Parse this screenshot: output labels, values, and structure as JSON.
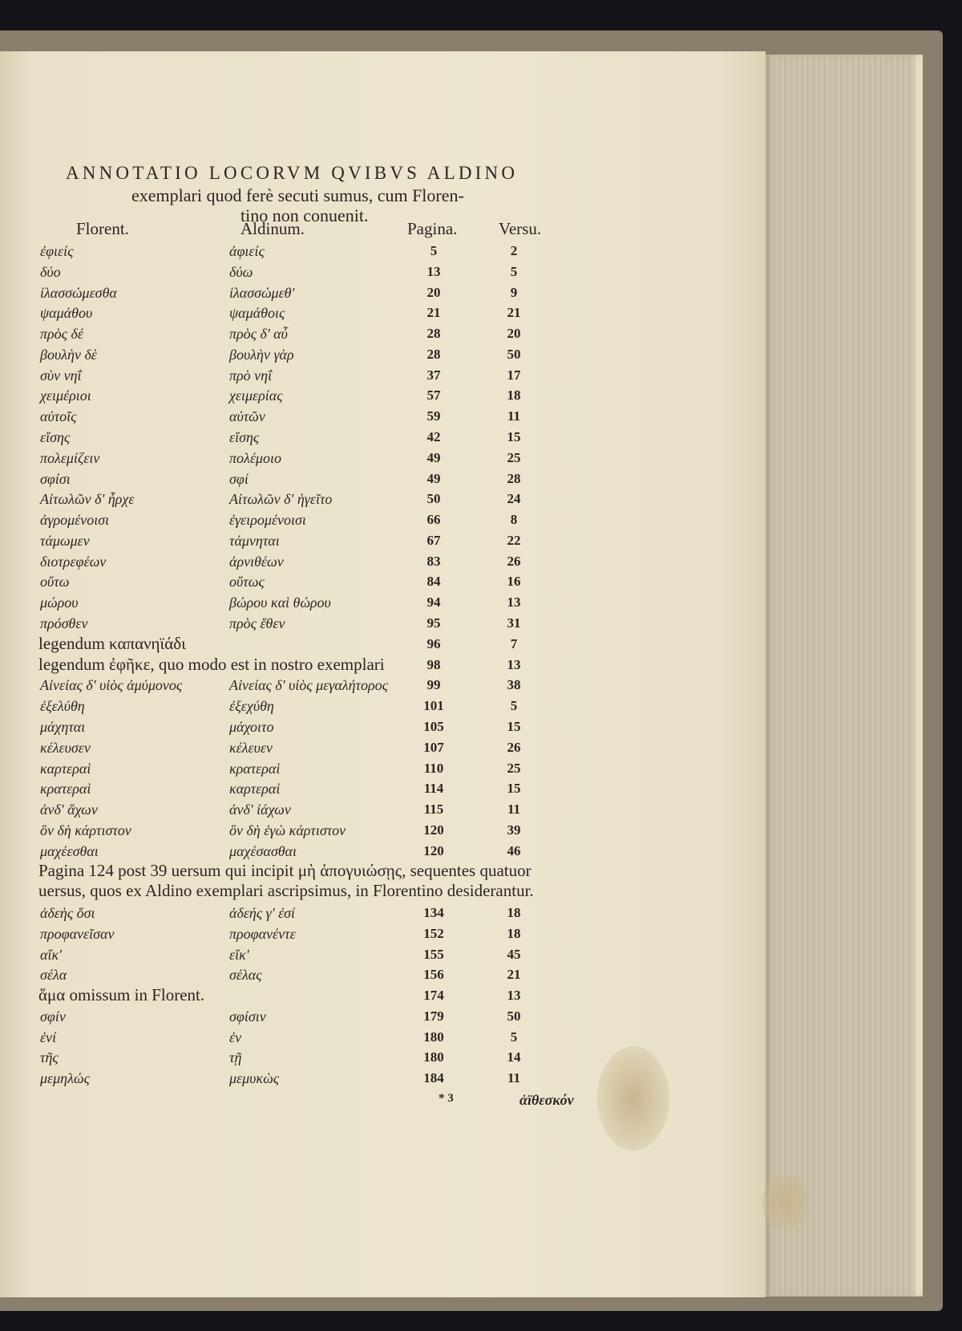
{
  "title": {
    "line1": "ANNOTATIO LOCORVM QVIBVS ALDINO",
    "line2": "exemplari quod ferè secuti sumus, cum Floren-",
    "line3": "tino non conuenit."
  },
  "headers": {
    "florent": "Florent.",
    "aldinum": "Aldinum.",
    "pagina": "Pagina.",
    "versu": "Versu."
  },
  "rows": [
    {
      "florent": "ἐφιείς",
      "aldinum": "ἀφιείς",
      "pagina": "5",
      "versu": "2"
    },
    {
      "florent": "δύο",
      "aldinum": "δύω",
      "pagina": "13",
      "versu": "5"
    },
    {
      "florent": "ἱλασσώμεσθα",
      "aldinum": "ἱλασσώμεθ'",
      "pagina": "20",
      "versu": "9"
    },
    {
      "florent": "ψαμάθου",
      "aldinum": "ψαμάθοις",
      "pagina": "21",
      "versu": "21"
    },
    {
      "florent": "πρὸς δέ",
      "aldinum": "πρὸς δ' αὖ",
      "pagina": "28",
      "versu": "20"
    },
    {
      "florent": "βουλὴν δὲ",
      "aldinum": "βουλὴν γὰρ",
      "pagina": "28",
      "versu": "50"
    },
    {
      "florent": "σὺν νηΐ",
      "aldinum": "πρὸ νηΐ",
      "pagina": "37",
      "versu": "17"
    },
    {
      "florent": "χειμέριοι",
      "aldinum": "χειμερίας",
      "pagina": "57",
      "versu": "18"
    },
    {
      "florent": "αὐτοῖς",
      "aldinum": "αὐτῶν",
      "pagina": "59",
      "versu": "11"
    },
    {
      "florent": "εἴσης",
      "aldinum": "εἴσης",
      "pagina": "42",
      "versu": "15"
    },
    {
      "florent": "πολεμίζειν",
      "aldinum": "πολέμοιο",
      "pagina": "49",
      "versu": "25"
    },
    {
      "florent": "σφίσι",
      "aldinum": "σφί",
      "pagina": "49",
      "versu": "28"
    },
    {
      "florent": "Αἰτωλῶν δ' ἦρχε",
      "aldinum": "Αἰτωλῶν δ' ἡγεῖτο",
      "pagina": "50",
      "versu": "24"
    },
    {
      "florent": "ἀγρομένοισι",
      "aldinum": "ἐγειρομένοισι",
      "pagina": "66",
      "versu": "8"
    },
    {
      "florent": "τάμωμεν",
      "aldinum": "τάμνηται",
      "pagina": "67",
      "versu": "22"
    },
    {
      "florent": "διοτρεφέων",
      "aldinum": "ἀρνιθέων",
      "pagina": "83",
      "versu": "26"
    },
    {
      "florent": "οὕτω",
      "aldinum": "οὕτως",
      "pagina": "84",
      "versu": "16"
    },
    {
      "florent": "μώρου",
      "aldinum": "βώρου καὶ θώρου",
      "pagina": "94",
      "versu": "13"
    },
    {
      "florent": "πρόσθεν",
      "aldinum": "πρὸς ἔθεν",
      "pagina": "95",
      "versu": "31"
    },
    {
      "text": "legendum καπανηϊάδι",
      "pagina": "96",
      "versu": "7"
    },
    {
      "text": "legendum ἐφῆκε, quo modo est in nostro exemplari",
      "pagina": "98",
      "versu": "13"
    },
    {
      "florent": "Αἰνείας δ' υἱὸς ἀμύμονος",
      "aldinum": "Αἰνείας δ' υἱὸς μεγαλήτορος",
      "pagina": "99",
      "versu": "38"
    },
    {
      "florent": "ἐξελύθη",
      "aldinum": "ἐξεχύθη",
      "pagina": "101",
      "versu": "5"
    },
    {
      "florent": "μάχηται",
      "aldinum": "μάχοιτο",
      "pagina": "105",
      "versu": "15"
    },
    {
      "florent": "κέλευσεν",
      "aldinum": "κέλευεν",
      "pagina": "107",
      "versu": "26"
    },
    {
      "florent": "καρτεραὶ",
      "aldinum": "κρατεραὶ",
      "pagina": "110",
      "versu": "25"
    },
    {
      "florent": "κρατεραὶ",
      "aldinum": "καρτεραὶ",
      "pagina": "114",
      "versu": "15"
    },
    {
      "florent": "ἀνδ' ἄχων",
      "aldinum": "ἀνδ' ἰάχων",
      "pagina": "115",
      "versu": "11"
    },
    {
      "florent": "ὃν δὴ κάρτιστον",
      "aldinum": "ὃν δὴ ἐγὼ κάρτιστον",
      "pagina": "120",
      "versu": "39"
    },
    {
      "florent": "μαχέεσθαι",
      "aldinum": "μαχέσασθαι",
      "pagina": "120",
      "versu": "46"
    }
  ],
  "paragraph": {
    "line1": "Pagina 124 post 39 uersum qui incipit μὴ ἀπογυιώσῃς, sequentes quatuor",
    "line2": "uersus, quos ex Aldino exemplari ascripsimus, in Florentino desiderantur."
  },
  "rows2": [
    {
      "florent": "ἀδεὴς ὅσι",
      "aldinum": "ἀδεής γ' ἐσί",
      "pagina": "134",
      "versu": "18"
    },
    {
      "florent": "προφανεῖσαν",
      "aldinum": "προφανέντε",
      "pagina": "152",
      "versu": "18"
    },
    {
      "florent": "αἴκ'",
      "aldinum": "εἴκ'",
      "pagina": "155",
      "versu": "45"
    },
    {
      "florent": "σέλα",
      "aldinum": "σέλας",
      "pagina": "156",
      "versu": "21"
    },
    {
      "text": "ἅμα omissum in Florent.",
      "pagina": "174",
      "versu": "13"
    },
    {
      "florent": "σφίν",
      "aldinum": "σφίσιν",
      "pagina": "179",
      "versu": "50"
    },
    {
      "florent": "ἐνί",
      "aldinum": "ἐν",
      "pagina": "180",
      "versu": "5"
    },
    {
      "florent": "τῆς",
      "aldinum": "τῇ",
      "pagina": "180",
      "versu": "14"
    },
    {
      "florent": "μεμηλώς",
      "aldinum": "μεμυκὼς",
      "pagina": "184",
      "versu": "11"
    }
  ],
  "footer": {
    "signature": "* 3",
    "catchword": "ἀϊθεσκόν"
  },
  "colors": {
    "paper": "#ece5cf",
    "ink": "#2b2520",
    "background": "#12141a",
    "fore_edge": "#c9bfa8"
  }
}
